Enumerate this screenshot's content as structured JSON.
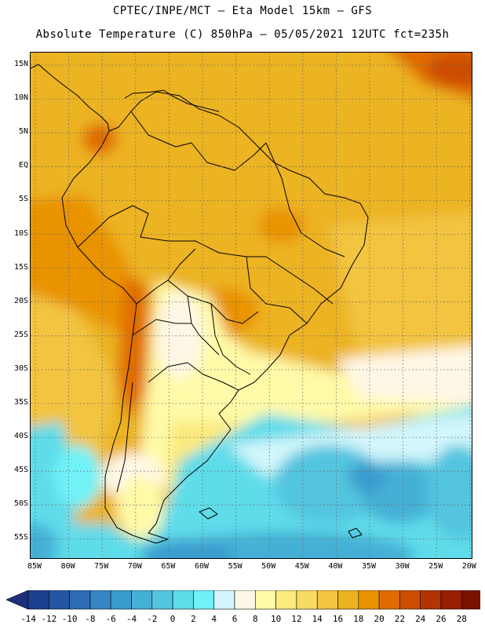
{
  "header": {
    "line1": "CPTEC/INPE/MCT –  Eta Model 15km – GFS",
    "line2": "Absolute Temperature (C) 850hPa – 05/05/2021 12UTC fct=235h"
  },
  "map": {
    "lat_labels": [
      "15N",
      "10N",
      "5N",
      "EQ",
      "5S",
      "10S",
      "15S",
      "20S",
      "25S",
      "30S",
      "35S",
      "40S",
      "45S",
      "50S",
      "55S"
    ],
    "lon_labels": [
      "85W",
      "80W",
      "75W",
      "70W",
      "65W",
      "60W",
      "55W",
      "50W",
      "45W",
      "40W",
      "35W",
      "30W",
      "25W",
      "20W"
    ],
    "grid": "dotted"
  },
  "colorbar": {
    "labels": [
      "-14",
      "-12",
      "-10",
      "-8",
      "-6",
      "-4",
      "-2",
      "0",
      "2",
      "4",
      "6",
      "8",
      "10",
      "12",
      "14",
      "16",
      "18",
      "20",
      "22",
      "24",
      "26",
      "28"
    ],
    "colors": [
      "#1c3f8f",
      "#2556a3",
      "#2e6db5",
      "#3586c2",
      "#3a9ccd",
      "#45b0d6",
      "#52c5df",
      "#5fdcea",
      "#6ff2f7",
      "#d2f6fb",
      "#fff7e6",
      "#fffaa8",
      "#fbea7e",
      "#f7da60",
      "#f2c43f",
      "#ecb320",
      "#e99300",
      "#e06c00",
      "#cc4e00",
      "#b33400",
      "#962000",
      "#7b1200"
    ],
    "under_color": "#1c2f7a",
    "over_color": "#6e0818"
  }
}
